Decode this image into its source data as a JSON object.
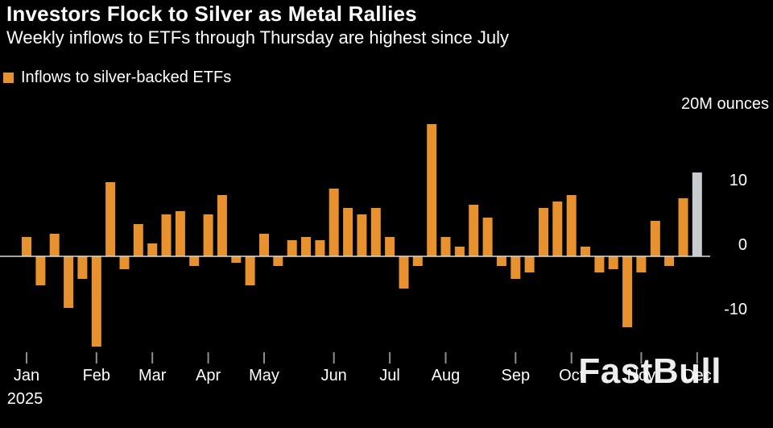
{
  "title": "Investors Flock to Silver as Metal Rallies",
  "subtitle": "Weekly inflows to ETFs through Thursday are highest since July",
  "legend": {
    "label": "Inflows to silver-backed ETFs",
    "color": "#E8922F"
  },
  "watermark": "FastBull",
  "axis": {
    "unit_label": "20M ounces",
    "year_label": "2025"
  },
  "colors": {
    "background": "#000000",
    "text": "#FFFFFF",
    "bar": "#E8922F",
    "highlight_bar": "#C8CCCE",
    "zero_line": "#D9D9D9",
    "axis_tick": "#8E8E8E"
  },
  "chart_data": {
    "type": "bar",
    "title": "Investors Flock to Silver as Metal Rallies",
    "subtitle": "Weekly inflows to ETFs through Thursday are highest since July",
    "series_name": "Inflows to silver-backed ETFs",
    "unit": "M ounces",
    "ylim": [
      -15,
      22
    ],
    "yticks": [
      10,
      0,
      -10
    ],
    "unit_label": "20M ounces",
    "year": "2025",
    "grid": false,
    "legend_position": "top-left",
    "frequency": "weekly",
    "months": [
      {
        "label": "Jan",
        "values": [
          3,
          -4.5,
          3.5,
          -8,
          -3.5
        ]
      },
      {
        "label": "Feb",
        "values": [
          -14,
          11.5,
          -2,
          5
        ]
      },
      {
        "label": "Mar",
        "values": [
          2,
          6.5,
          7,
          -1.5
        ]
      },
      {
        "label": "Apr",
        "values": [
          6.5,
          9.5,
          -1,
          -4.5
        ]
      },
      {
        "label": "May",
        "values": [
          3.5,
          -1.5,
          2.5,
          3,
          2.5
        ]
      },
      {
        "label": "Jun",
        "values": [
          10.5,
          7.5,
          6.5,
          7.5
        ]
      },
      {
        "label": "Jul",
        "values": [
          3,
          -5,
          -1.5,
          20.5
        ]
      },
      {
        "label": "Aug",
        "values": [
          3,
          1.5,
          8,
          6,
          -1.5
        ]
      },
      {
        "label": "Sep",
        "values": [
          -3.5,
          -2.5,
          7.5,
          8.5
        ]
      },
      {
        "label": "Oct",
        "values": [
          9.5,
          1.5,
          -2.5,
          -2,
          -11
        ]
      },
      {
        "label": "Nov",
        "values": [
          -2.5,
          5.5,
          -1.5,
          9
        ]
      },
      {
        "label": "Dec",
        "values": [
          13
        ]
      }
    ],
    "highlight_last_bar": true,
    "highlight_note": "latest week shown in silver"
  }
}
